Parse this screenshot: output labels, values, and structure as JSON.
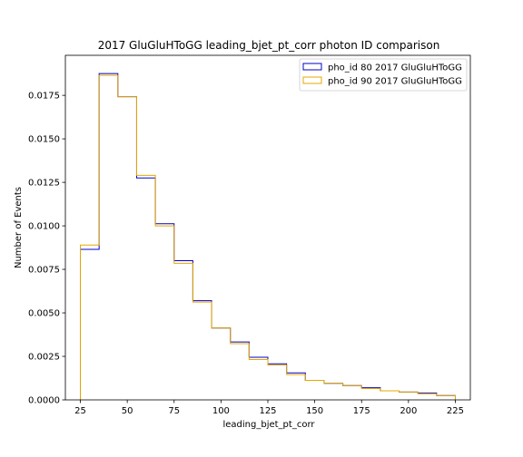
{
  "chart_data": {
    "type": "histogram-step",
    "title": "2017 GluGluHToGG leading_bjet_pt_corr photon ID comparison",
    "xlabel": "leading_bjet_pt_corr",
    "ylabel": "Number of Events",
    "xlim": [
      17,
      233
    ],
    "ylim": [
      0,
      0.0198
    ],
    "bin_edges": [
      25,
      35,
      45,
      55,
      65,
      75,
      85,
      95,
      105,
      115,
      125,
      135,
      145,
      155,
      165,
      175,
      185,
      195,
      205,
      215,
      225
    ],
    "series": [
      {
        "name": "pho_id 80 2017 GluGluHToGG",
        "color": "#0000cc",
        "values": [
          0.00865,
          0.01875,
          0.01742,
          0.01275,
          0.01012,
          0.008,
          0.0057,
          0.00413,
          0.00333,
          0.00245,
          0.00207,
          0.00155,
          0.00112,
          0.00095,
          0.00082,
          0.0007,
          0.00052,
          0.00045,
          0.0004,
          0.00025
        ]
      },
      {
        "name": "pho_id 90 2017 GluGluHToGG",
        "color": "#e6a800",
        "values": [
          0.0089,
          0.01865,
          0.01742,
          0.0129,
          0.01,
          0.00785,
          0.00562,
          0.00413,
          0.00323,
          0.00232,
          0.002,
          0.00145,
          0.00112,
          0.00095,
          0.00082,
          0.00065,
          0.00052,
          0.00045,
          0.00035,
          0.00025
        ]
      }
    ],
    "x_ticks": [
      25,
      50,
      75,
      100,
      125,
      150,
      175,
      200,
      225
    ],
    "y_ticks": [
      0.0,
      0.0025,
      0.005,
      0.0075,
      0.01,
      0.0125,
      0.015,
      0.0175
    ],
    "x_tick_labels": [
      "25",
      "50",
      "75",
      "100",
      "125",
      "150",
      "175",
      "200",
      "225"
    ],
    "y_tick_labels": [
      "0.0000",
      "0.0025",
      "0.0050",
      "0.0075",
      "0.0100",
      "0.0125",
      "0.0150",
      "0.0175"
    ],
    "legend_position": "top-right",
    "grid": false
  }
}
